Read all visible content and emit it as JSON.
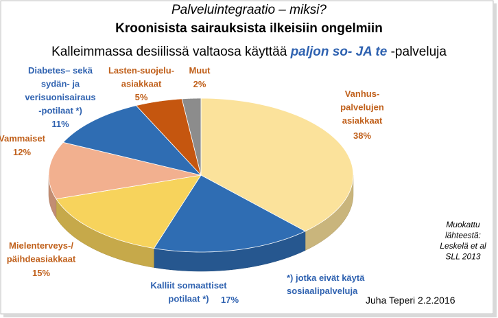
{
  "chart_data": {
    "type": "pie3d",
    "title": "Palveluintegraatio – miksi?",
    "subtitle": "Kroonisista sairauksista ilkeisiin ongelmiin",
    "headline": [
      "Kalleimmassa desiilissä valtaosa käyttää ",
      "paljon so- JA te",
      " -palveluja"
    ],
    "categories": [
      [
        "Vanhus-",
        "palvelujen",
        "asiakkaat"
      ],
      [
        "Kalliit somaattiset",
        "potilaat *)"
      ],
      [
        "Mielenterveys-/",
        "päihdeasiakkaat"
      ],
      [
        "Vammaiset"
      ],
      [
        "Diabetes– sekä",
        "sydän- ja",
        "verisuonisairaus",
        "-potilaat *)"
      ],
      [
        "Lasten-suojelu-",
        "asiakkaat"
      ],
      [
        "Muut"
      ]
    ],
    "values": [
      38,
      17,
      15,
      12,
      11,
      5,
      2
    ],
    "value_labels": [
      "38%",
      "17%",
      "15%",
      "12%",
      "11%",
      "5%",
      "2%"
    ],
    "colors": [
      "#fbe29b",
      "#2f6db3",
      "#f7d35c",
      "#f2b08f",
      "#2f6db3",
      "#c5560f",
      "#8c8c8c"
    ],
    "label_colors": [
      "#c0601b",
      "#2f62b0",
      "#c0601b",
      "#c0601b",
      "#2f62b0",
      "#c0601b",
      "#c0601b"
    ],
    "annotations": [
      [
        "Muokattu",
        "lähteestä:",
        "Leskelä et al",
        "SLL 2013"
      ],
      [
        "*) jotka eivät käytä",
        "sosiaalipalveluja"
      ],
      [
        "Juha Teperi 2.2.2016"
      ]
    ]
  }
}
